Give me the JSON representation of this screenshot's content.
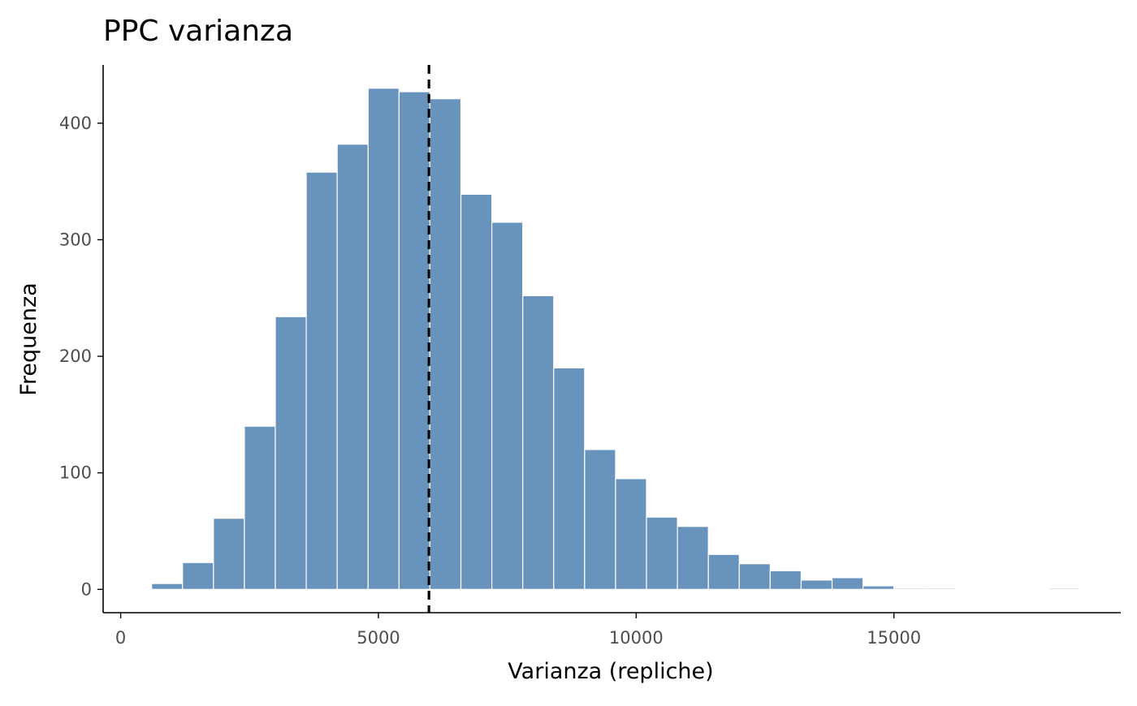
{
  "chart_data": {
    "type": "bar",
    "subtype": "histogram",
    "title": "PPC varianza",
    "xlabel": "Varianza (repliche)",
    "ylabel": "Frequenza",
    "xlim": [
      -340,
      19400
    ],
    "ylim": [
      -20,
      450
    ],
    "x_ticks": [
      0,
      5000,
      10000,
      15000
    ],
    "x_tick_labels": [
      "0",
      "5000",
      "10000",
      "15000"
    ],
    "y_ticks": [
      0,
      100,
      200,
      300,
      400
    ],
    "y_tick_labels": [
      "0",
      "100",
      "200",
      "300",
      "400"
    ],
    "bin_width": 600,
    "bins": [
      {
        "x0": 600,
        "x1": 1200,
        "count": 5
      },
      {
        "x0": 1200,
        "x1": 1800,
        "count": 23
      },
      {
        "x0": 1800,
        "x1": 2400,
        "count": 61
      },
      {
        "x0": 2400,
        "x1": 3000,
        "count": 140
      },
      {
        "x0": 3000,
        "x1": 3600,
        "count": 234
      },
      {
        "x0": 3600,
        "x1": 4200,
        "count": 358
      },
      {
        "x0": 4200,
        "x1": 4800,
        "count": 382
      },
      {
        "x0": 4800,
        "x1": 5400,
        "count": 430
      },
      {
        "x0": 5400,
        "x1": 6000,
        "count": 427
      },
      {
        "x0": 6000,
        "x1": 6600,
        "count": 421
      },
      {
        "x0": 6600,
        "x1": 7200,
        "count": 339
      },
      {
        "x0": 7200,
        "x1": 7800,
        "count": 315
      },
      {
        "x0": 7800,
        "x1": 8400,
        "count": 252
      },
      {
        "x0": 8400,
        "x1": 9000,
        "count": 190
      },
      {
        "x0": 9000,
        "x1": 9600,
        "count": 120
      },
      {
        "x0": 9600,
        "x1": 10200,
        "count": 95
      },
      {
        "x0": 10200,
        "x1": 10800,
        "count": 62
      },
      {
        "x0": 10800,
        "x1": 11400,
        "count": 54
      },
      {
        "x0": 11400,
        "x1": 12000,
        "count": 30
      },
      {
        "x0": 12000,
        "x1": 12600,
        "count": 22
      },
      {
        "x0": 12600,
        "x1": 13200,
        "count": 16
      },
      {
        "x0": 13200,
        "x1": 13800,
        "count": 8
      },
      {
        "x0": 13800,
        "x1": 14400,
        "count": 10
      },
      {
        "x0": 14400,
        "x1": 15000,
        "count": 3
      },
      {
        "x0": 15000,
        "x1": 15600,
        "count": 1
      },
      {
        "x0": 15600,
        "x1": 16200,
        "count": 1
      },
      {
        "x0": 16200,
        "x1": 16800,
        "count": 0
      },
      {
        "x0": 16800,
        "x1": 17400,
        "count": 0
      },
      {
        "x0": 17400,
        "x1": 18000,
        "count": 0
      },
      {
        "x0": 18000,
        "x1": 18600,
        "count": 1
      }
    ],
    "reference_line": {
      "x": 5980,
      "style": "dashed"
    },
    "grid": false,
    "legend": "none",
    "colors": {
      "bar_fill": "#6893bc",
      "bar_edge": "#ffffff",
      "reference_line": "#000000",
      "axis": "#000000",
      "tick_label": "#4d4d4d"
    }
  }
}
